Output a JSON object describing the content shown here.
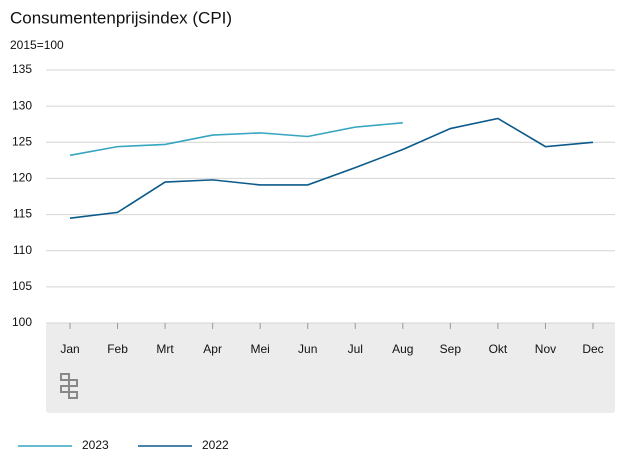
{
  "chart_data": {
    "type": "line",
    "title": "Consumentenprijsindex (CPI)",
    "subtitle": "2015=100",
    "categories": [
      "Jan",
      "Feb",
      "Mrt",
      "Apr",
      "Mei",
      "Jun",
      "Jul",
      "Aug",
      "Sep",
      "Okt",
      "Nov",
      "Dec"
    ],
    "series": [
      {
        "name": "2023",
        "color": "#35a5c1",
        "values": [
          123.2,
          124.4,
          124.7,
          126.0,
          126.3,
          125.8,
          127.1,
          127.7,
          null,
          null,
          null,
          null
        ]
      },
      {
        "name": "2022",
        "color": "#0c5a8b",
        "values": [
          114.5,
          115.3,
          119.5,
          119.8,
          119.1,
          119.1,
          121.5,
          124.0,
          126.9,
          128.3,
          124.4,
          125.0
        ]
      }
    ],
    "ylim": [
      100,
      135
    ],
    "yticks": [
      100,
      105,
      110,
      115,
      120,
      125,
      130,
      135
    ],
    "grid": true
  }
}
